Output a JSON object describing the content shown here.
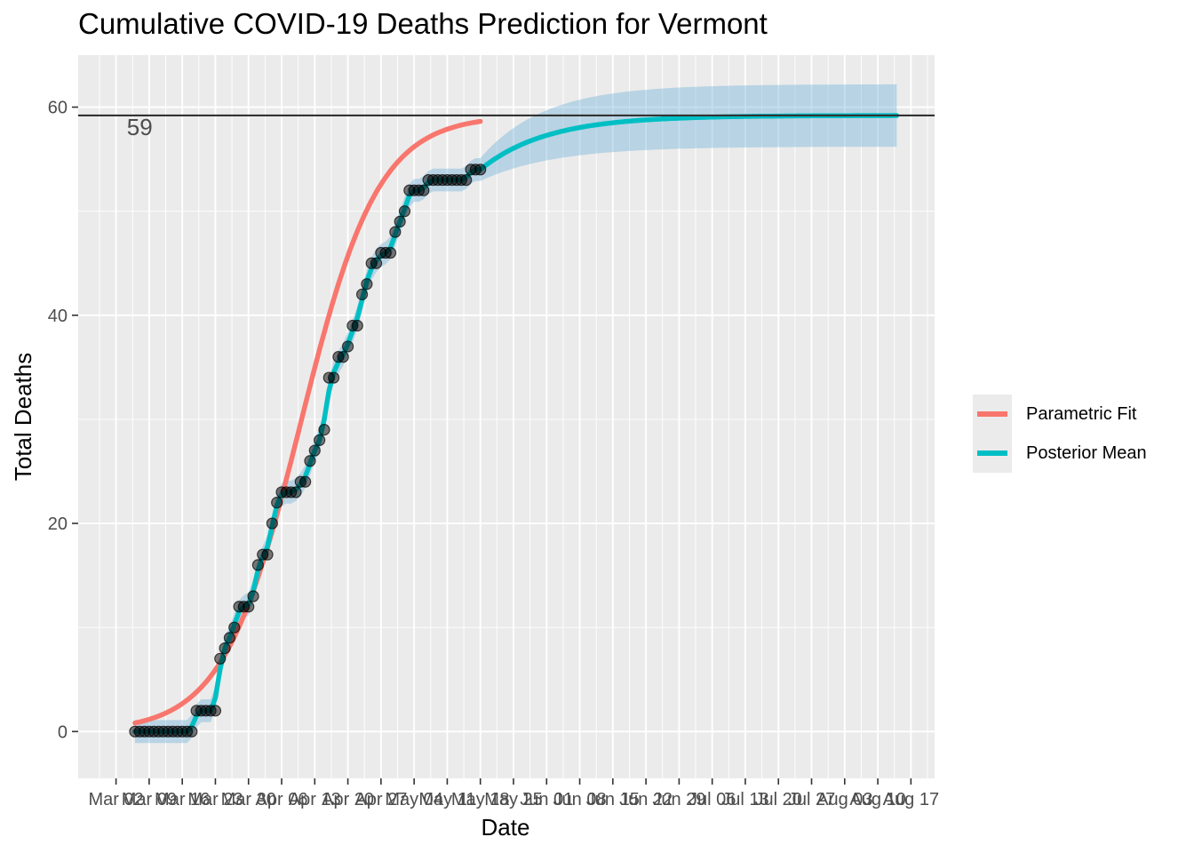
{
  "title": "Cumulative COVID-19 Deaths Prediction for Vermont",
  "chart_data": {
    "type": "line",
    "title": "Cumulative COVID-19 Deaths Prediction for Vermont",
    "xlabel": "Date",
    "ylabel": "Total Deaths",
    "x_range": [
      "2020-02-23",
      "2020-08-22"
    ],
    "ylim": [
      -4.5,
      65
    ],
    "grid": true,
    "legend_position": "right",
    "y_ticks": [
      0,
      20,
      40,
      60
    ],
    "x_ticks": [
      {
        "date": "2020-03-02",
        "label": "Mar 02"
      },
      {
        "date": "2020-03-09",
        "label": "Mar 09"
      },
      {
        "date": "2020-03-16",
        "label": "Mar 16"
      },
      {
        "date": "2020-03-23",
        "label": "Mar 23"
      },
      {
        "date": "2020-03-30",
        "label": "Mar 30"
      },
      {
        "date": "2020-04-06",
        "label": "Apr 06"
      },
      {
        "date": "2020-04-13",
        "label": "Apr 13"
      },
      {
        "date": "2020-04-20",
        "label": "Apr 20"
      },
      {
        "date": "2020-04-27",
        "label": "Apr 27"
      },
      {
        "date": "2020-05-04",
        "label": "May 04"
      },
      {
        "date": "2020-05-11",
        "label": "May 11"
      },
      {
        "date": "2020-05-18",
        "label": "May 18"
      },
      {
        "date": "2020-05-25",
        "label": "May 25"
      },
      {
        "date": "2020-06-01",
        "label": "Jun 01"
      },
      {
        "date": "2020-06-08",
        "label": "Jun 08"
      },
      {
        "date": "2020-06-15",
        "label": "Jun 15"
      },
      {
        "date": "2020-06-22",
        "label": "Jun 22"
      },
      {
        "date": "2020-06-29",
        "label": "Jun 29"
      },
      {
        "date": "2020-07-06",
        "label": "Jul 06"
      },
      {
        "date": "2020-07-13",
        "label": "Jul 13"
      },
      {
        "date": "2020-07-20",
        "label": "Jul 20"
      },
      {
        "date": "2020-07-27",
        "label": "Jul 27"
      },
      {
        "date": "2020-08-03",
        "label": "Aug 03"
      },
      {
        "date": "2020-08-10",
        "label": "Aug 10"
      },
      {
        "date": "2020-08-17",
        "label": "Aug 17"
      }
    ],
    "hline": {
      "y": 59.2,
      "label": "59",
      "label_date": "2020-03-07",
      "color": "#333333"
    },
    "observed": {
      "dates": [
        "2020-03-06",
        "2020-03-07",
        "2020-03-08",
        "2020-03-09",
        "2020-03-10",
        "2020-03-11",
        "2020-03-12",
        "2020-03-13",
        "2020-03-14",
        "2020-03-15",
        "2020-03-16",
        "2020-03-17",
        "2020-03-18",
        "2020-03-19",
        "2020-03-20",
        "2020-03-21",
        "2020-03-22",
        "2020-03-23",
        "2020-03-24",
        "2020-03-25",
        "2020-03-26",
        "2020-03-27",
        "2020-03-28",
        "2020-03-29",
        "2020-03-30",
        "2020-03-31",
        "2020-04-01",
        "2020-04-02",
        "2020-04-03",
        "2020-04-04",
        "2020-04-05",
        "2020-04-06",
        "2020-04-07",
        "2020-04-08",
        "2020-04-09",
        "2020-04-10",
        "2020-04-11",
        "2020-04-12",
        "2020-04-13",
        "2020-04-14",
        "2020-04-15",
        "2020-04-16",
        "2020-04-17",
        "2020-04-18",
        "2020-04-19",
        "2020-04-20",
        "2020-04-21",
        "2020-04-22",
        "2020-04-23",
        "2020-04-24",
        "2020-04-25",
        "2020-04-26",
        "2020-04-27",
        "2020-04-28",
        "2020-04-29",
        "2020-04-30",
        "2020-05-01",
        "2020-05-02",
        "2020-05-03",
        "2020-05-04",
        "2020-05-05",
        "2020-05-06",
        "2020-05-07",
        "2020-05-08",
        "2020-05-09",
        "2020-05-10",
        "2020-05-11",
        "2020-05-12",
        "2020-05-13",
        "2020-05-14",
        "2020-05-15",
        "2020-05-16",
        "2020-05-17",
        "2020-05-18"
      ],
      "values": [
        0,
        0,
        0,
        0,
        0,
        0,
        0,
        0,
        0,
        0,
        0,
        0,
        0,
        2,
        2,
        2,
        2,
        2,
        7,
        8,
        9,
        10,
        12,
        12,
        12,
        13,
        16,
        17,
        17,
        20,
        22,
        23,
        23,
        23,
        23,
        24,
        24,
        26,
        27,
        28,
        29,
        34,
        34,
        36,
        36,
        37,
        39,
        39,
        42,
        43,
        45,
        45,
        46,
        46,
        46,
        48,
        49,
        50,
        52,
        52,
        52,
        52,
        53,
        53,
        53,
        53,
        53,
        53,
        53,
        53,
        53,
        54,
        54,
        54
      ]
    },
    "series": [
      {
        "name": "Parametric Fit",
        "color": "#F8766D"
      },
      {
        "name": "Posterior Mean",
        "color": "#00BFC4"
      }
    ],
    "ribbon_color": "#6BAED6"
  },
  "legend": {
    "items": [
      {
        "label": "Parametric Fit",
        "color": "#F8766D"
      },
      {
        "label": "Posterior Mean",
        "color": "#00BFC4"
      }
    ]
  }
}
